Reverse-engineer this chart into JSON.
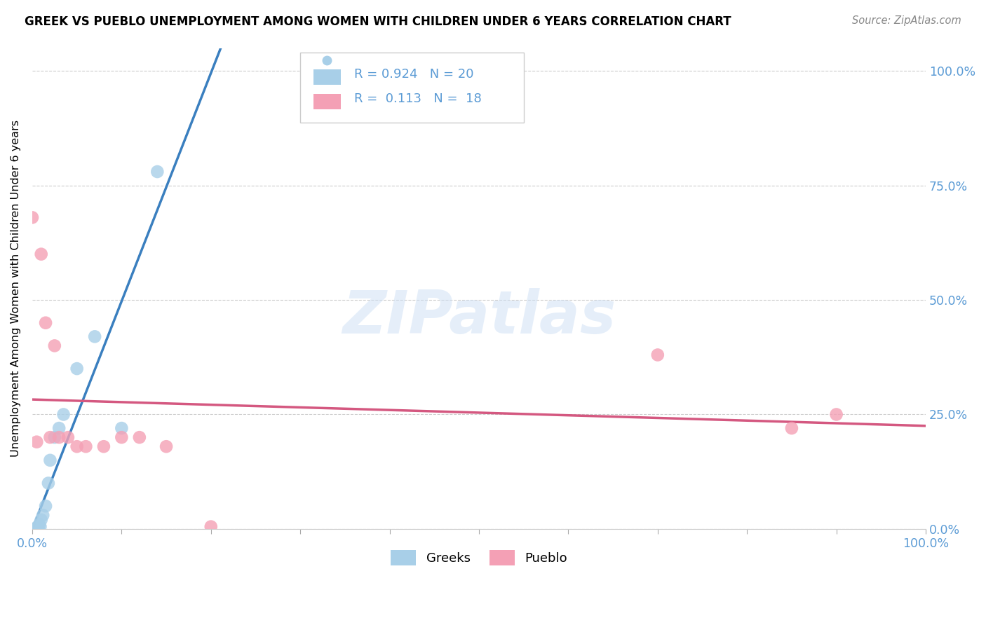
{
  "title": "GREEK VS PUEBLO UNEMPLOYMENT AMONG WOMEN WITH CHILDREN UNDER 6 YEARS CORRELATION CHART",
  "source": "Source: ZipAtlas.com",
  "ylabel": "Unemployment Among Women with Children Under 6 years",
  "watermark": "ZIPatlas",
  "greek_R": "0.924",
  "greek_N": "20",
  "pueblo_R": "0.113",
  "pueblo_N": "18",
  "greek_color": "#a8cfe8",
  "pueblo_color": "#f4a0b5",
  "greek_line_color": "#3a7fbf",
  "pueblo_line_color": "#d45880",
  "ytick_labels": [
    "0.0%",
    "25.0%",
    "50.0%",
    "75.0%",
    "100.0%"
  ],
  "ytick_values": [
    0,
    25,
    50,
    75,
    100
  ],
  "xlim": [
    0,
    100
  ],
  "ylim": [
    0,
    105
  ],
  "tick_color": "#5b9bd5",
  "greek_x": [
    0.2,
    0.3,
    0.4,
    0.5,
    0.6,
    0.7,
    0.8,
    0.9,
    1.0,
    1.2,
    1.5,
    1.8,
    2.0,
    2.5,
    3.0,
    3.5,
    5.0,
    7.0,
    10.0,
    14.0
  ],
  "greek_y": [
    0.0,
    0.0,
    0.0,
    0.0,
    0.5,
    0.0,
    1.0,
    0.5,
    2.0,
    3.0,
    5.0,
    10.0,
    15.0,
    20.0,
    22.0,
    25.0,
    35.0,
    42.0,
    22.0,
    78.0
  ],
  "pueblo_x": [
    0.0,
    0.5,
    1.0,
    1.5,
    2.0,
    2.5,
    3.0,
    4.0,
    5.0,
    6.0,
    8.0,
    10.0,
    12.0,
    15.0,
    20.0,
    70.0,
    85.0,
    90.0
  ],
  "pueblo_y": [
    68.0,
    19.0,
    60.0,
    45.0,
    20.0,
    40.0,
    20.0,
    20.0,
    18.0,
    18.0,
    18.0,
    20.0,
    20.0,
    18.0,
    0.5,
    38.0,
    22.0,
    25.0
  ],
  "pueblo_regression_start_y": 20.0,
  "pueblo_regression_end_y": 30.0,
  "xtick_minor": [
    10,
    20,
    30,
    40,
    50,
    60,
    70,
    80,
    90
  ]
}
